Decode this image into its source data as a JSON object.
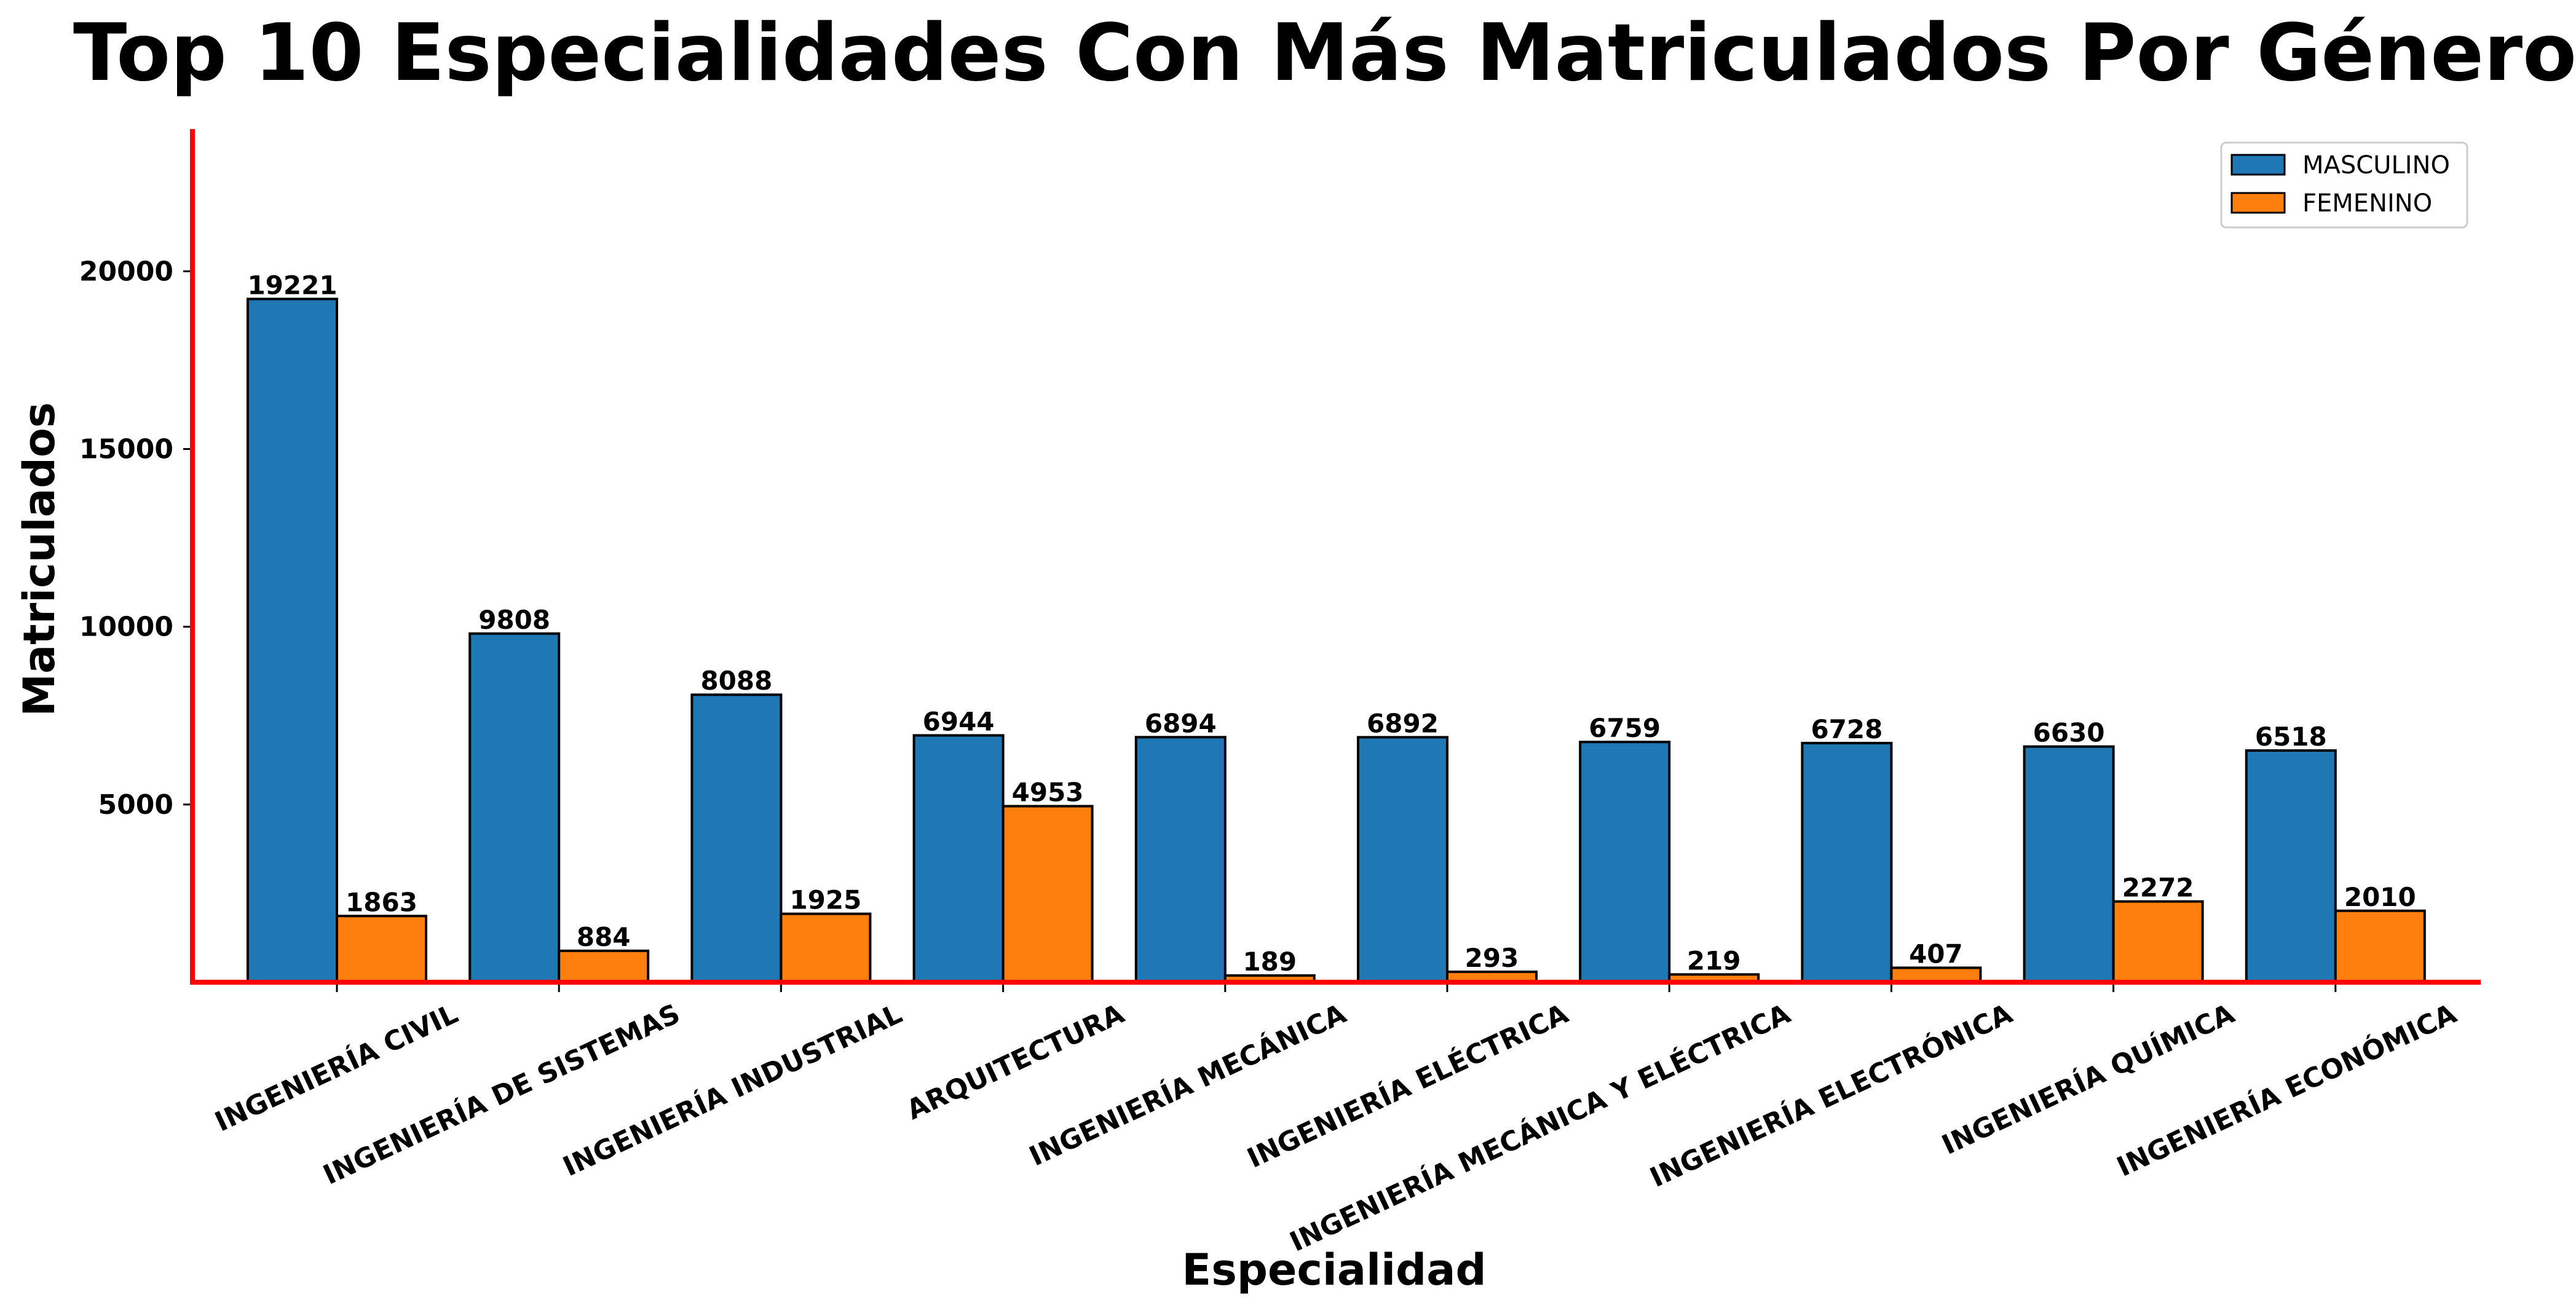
{
  "chart_data": {
    "type": "bar",
    "title": "Top 10 Especialidades Con Más Matriculados Por Género",
    "xlabel": "Especialidad",
    "ylabel": "Matriculados",
    "categories": [
      "INGENIERÍA CIVIL",
      "INGENIERÍA DE SISTEMAS",
      "INGENIERÍA INDUSTRIAL",
      "ARQUITECTURA",
      "INGENIERÍA MECÁNICA",
      "INGENIERÍA ELÉCTRICA",
      "INGENIERÍA MECÁNICA Y ELÉCTRICA",
      "INGENIERÍA ELECTRÓNICA",
      "INGENIERÍA QUÍMICA",
      "INGENIERÍA ECONÓMICA"
    ],
    "series": [
      {
        "name": "MASCULINO",
        "color": "#1f77b4",
        "values": [
          19221,
          9808,
          8088,
          6944,
          6894,
          6892,
          6759,
          6728,
          6630,
          6518
        ]
      },
      {
        "name": "FEMENINO",
        "color": "#ff7f0e",
        "values": [
          1863,
          884,
          1925,
          4953,
          189,
          293,
          219,
          407,
          2272,
          2010
        ]
      }
    ],
    "ylim": [
      0,
      24000
    ],
    "yticks": [
      5000,
      10000,
      15000,
      20000
    ],
    "axis_color": "#ff0000",
    "grid": false,
    "legend_position": "upper-right",
    "xtick_rotation_deg": 25
  }
}
